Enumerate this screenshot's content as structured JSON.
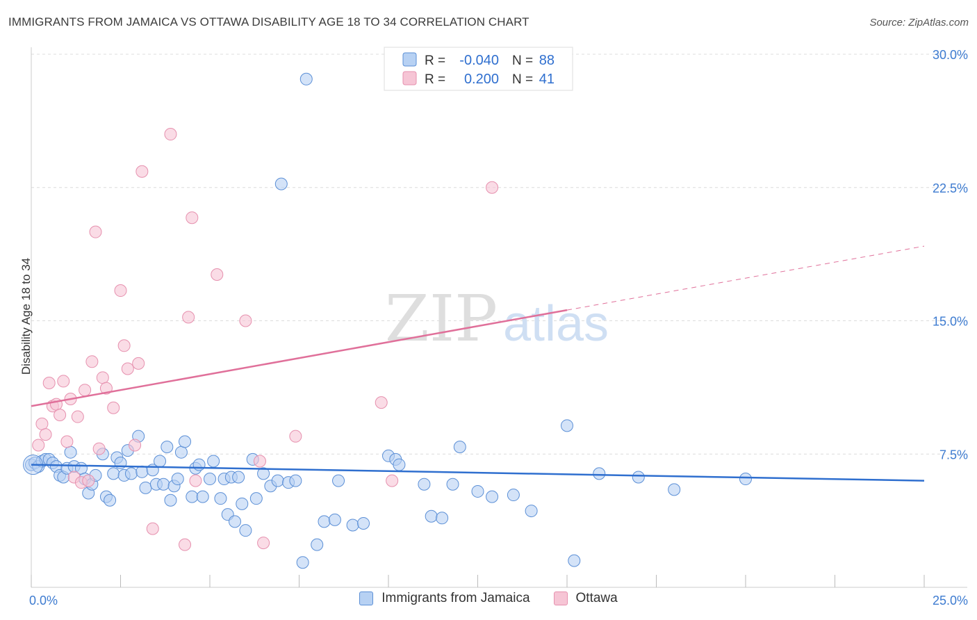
{
  "title": "IMMIGRANTS FROM JAMAICA VS OTTAWA DISABILITY AGE 18 TO 34 CORRELATION CHART",
  "source": "Source: ZipAtlas.com",
  "watermark": {
    "zip": "ZIP",
    "atlas": "atlas"
  },
  "chart_data": {
    "type": "scatter",
    "xlabel": "",
    "ylabel": "Disability Age 18 to 34",
    "xlim": [
      0,
      25
    ],
    "ylim": [
      0,
      30
    ],
    "x_tick_labels": [
      "0.0%",
      "25.0%"
    ],
    "y_ticks": [
      7.5,
      15.0,
      22.5,
      30.0
    ],
    "y_tick_labels": [
      "7.5%",
      "15.0%",
      "22.5%",
      "30.0%"
    ],
    "grid": true,
    "legend_placement": "top-center",
    "series": [
      {
        "name": "Immigrants from Jamaica",
        "color": "#5b8fd6",
        "fill": "#b7d1f3",
        "r_label": "R =",
        "r_value": "-0.040",
        "n_label": "N =",
        "n_value": "88",
        "trend": {
          "x": [
            0,
            25
          ],
          "y": [
            6.9,
            6.0
          ],
          "style": "solid",
          "color": "#2f6fcf"
        },
        "points": [
          [
            0.0,
            6.9
          ],
          [
            0.1,
            7.0
          ],
          [
            0.2,
            6.8
          ],
          [
            0.3,
            7.1
          ],
          [
            0.4,
            7.2
          ],
          [
            0.5,
            7.2
          ],
          [
            0.6,
            7.0
          ],
          [
            0.7,
            6.8
          ],
          [
            0.8,
            6.3
          ],
          [
            0.9,
            6.2
          ],
          [
            1.0,
            6.7
          ],
          [
            1.1,
            7.6
          ],
          [
            1.2,
            6.8
          ],
          [
            1.4,
            6.7
          ],
          [
            1.5,
            6.1
          ],
          [
            1.6,
            5.3
          ],
          [
            1.7,
            5.8
          ],
          [
            1.8,
            6.3
          ],
          [
            2.0,
            7.5
          ],
          [
            2.1,
            5.1
          ],
          [
            2.2,
            4.9
          ],
          [
            2.3,
            6.4
          ],
          [
            2.4,
            7.3
          ],
          [
            2.5,
            7.0
          ],
          [
            2.6,
            6.3
          ],
          [
            2.7,
            7.7
          ],
          [
            2.8,
            6.4
          ],
          [
            3.0,
            8.5
          ],
          [
            3.1,
            6.5
          ],
          [
            3.2,
            5.6
          ],
          [
            3.4,
            6.6
          ],
          [
            3.5,
            5.8
          ],
          [
            3.6,
            7.1
          ],
          [
            3.7,
            5.8
          ],
          [
            3.8,
            7.9
          ],
          [
            3.9,
            4.9
          ],
          [
            4.0,
            5.7
          ],
          [
            4.1,
            6.1
          ],
          [
            4.2,
            7.6
          ],
          [
            4.3,
            8.2
          ],
          [
            4.5,
            5.1
          ],
          [
            4.6,
            6.7
          ],
          [
            4.7,
            6.9
          ],
          [
            4.8,
            5.1
          ],
          [
            5.0,
            6.1
          ],
          [
            5.1,
            7.1
          ],
          [
            5.3,
            5.0
          ],
          [
            5.4,
            6.1
          ],
          [
            5.5,
            4.1
          ],
          [
            5.6,
            6.2
          ],
          [
            5.7,
            3.7
          ],
          [
            5.8,
            6.2
          ],
          [
            5.9,
            4.7
          ],
          [
            6.0,
            3.2
          ],
          [
            6.2,
            7.2
          ],
          [
            6.3,
            5.0
          ],
          [
            6.5,
            6.4
          ],
          [
            6.7,
            5.7
          ],
          [
            6.9,
            6.0
          ],
          [
            7.0,
            22.7
          ],
          [
            7.2,
            5.9
          ],
          [
            7.4,
            6.0
          ],
          [
            7.6,
            1.4
          ],
          [
            7.7,
            28.6
          ],
          [
            8.0,
            2.4
          ],
          [
            8.2,
            3.7
          ],
          [
            8.5,
            3.8
          ],
          [
            8.6,
            6.0
          ],
          [
            9.0,
            3.5
          ],
          [
            9.3,
            3.6
          ],
          [
            10.0,
            7.4
          ],
          [
            10.2,
            7.2
          ],
          [
            10.3,
            6.9
          ],
          [
            11.0,
            5.8
          ],
          [
            11.2,
            4.0
          ],
          [
            11.5,
            3.9
          ],
          [
            11.8,
            5.8
          ],
          [
            12.0,
            7.9
          ],
          [
            12.5,
            5.4
          ],
          [
            12.9,
            5.1
          ],
          [
            13.5,
            5.2
          ],
          [
            14.0,
            4.3
          ],
          [
            15.0,
            9.1
          ],
          [
            15.2,
            1.5
          ],
          [
            15.9,
            6.4
          ],
          [
            17.0,
            6.2
          ],
          [
            18.0,
            5.5
          ],
          [
            20.0,
            6.1
          ]
        ]
      },
      {
        "name": "Ottawa",
        "color": "#e690ae",
        "fill": "#f6c5d5",
        "r_label": "R =",
        "r_value": "0.200",
        "n_label": "N =",
        "n_value": "41",
        "trend": {
          "x": [
            0,
            15
          ],
          "y": [
            10.2,
            15.6
          ],
          "style": "solid",
          "color": "#e0709a",
          "extension": {
            "x": [
              15,
              25
            ],
            "y": [
              15.6,
              19.2
            ],
            "style": "dashed"
          }
        },
        "points": [
          [
            0.2,
            8.0
          ],
          [
            0.3,
            9.2
          ],
          [
            0.4,
            8.6
          ],
          [
            0.5,
            11.5
          ],
          [
            0.6,
            10.2
          ],
          [
            0.7,
            10.3
          ],
          [
            0.8,
            9.7
          ],
          [
            0.9,
            11.6
          ],
          [
            1.0,
            8.2
          ],
          [
            1.1,
            10.6
          ],
          [
            1.2,
            6.2
          ],
          [
            1.3,
            9.6
          ],
          [
            1.4,
            5.9
          ],
          [
            1.5,
            11.1
          ],
          [
            1.6,
            6.0
          ],
          [
            1.7,
            12.7
          ],
          [
            1.8,
            20.0
          ],
          [
            1.9,
            7.8
          ],
          [
            2.0,
            11.8
          ],
          [
            2.1,
            11.2
          ],
          [
            2.3,
            10.1
          ],
          [
            2.5,
            16.7
          ],
          [
            2.6,
            13.6
          ],
          [
            2.7,
            12.3
          ],
          [
            2.9,
            8.0
          ],
          [
            3.0,
            12.6
          ],
          [
            3.1,
            23.4
          ],
          [
            3.4,
            3.3
          ],
          [
            3.9,
            25.5
          ],
          [
            4.3,
            2.4
          ],
          [
            4.4,
            15.2
          ],
          [
            4.5,
            20.8
          ],
          [
            4.6,
            6.0
          ],
          [
            5.2,
            17.6
          ],
          [
            6.0,
            15.0
          ],
          [
            6.4,
            7.1
          ],
          [
            6.5,
            2.5
          ],
          [
            7.4,
            8.5
          ],
          [
            9.8,
            10.4
          ],
          [
            10.1,
            6.0
          ],
          [
            12.9,
            22.5
          ]
        ]
      }
    ]
  }
}
